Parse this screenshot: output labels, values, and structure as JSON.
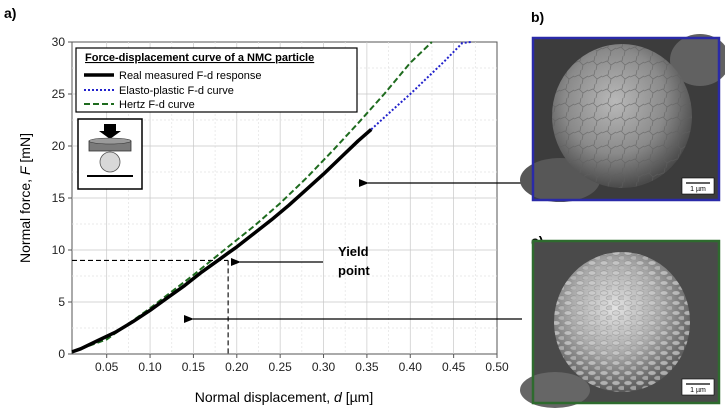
{
  "panels": {
    "a": "a)",
    "b": "b)",
    "c": "c)"
  },
  "chart_data": {
    "type": "line",
    "xlabel_main": "Normal displacement, ",
    "xlabel_var": "d",
    "xlabel_unit": " [µm]",
    "ylabel_main": "Normal force, ",
    "ylabel_var": "F",
    "ylabel_unit": " [mN]",
    "xlim": [
      0.01,
      0.5
    ],
    "ylim": [
      0,
      30
    ],
    "x_ticks": [
      "0.05",
      "0.10",
      "0.15",
      "0.20",
      "0.25",
      "0.30",
      "0.35",
      "0.40",
      "0.45",
      "0.50"
    ],
    "y_ticks": [
      "0",
      "5",
      "10",
      "15",
      "20",
      "25",
      "30"
    ],
    "grid": true,
    "legend_title": "Force-displacement curve of a NMC particle",
    "legend_position": "top-left",
    "series": [
      {
        "name": "Real measured F-d response",
        "color": "#000000",
        "style": "solid",
        "x": [
          0.01,
          0.02,
          0.04,
          0.06,
          0.08,
          0.1,
          0.12,
          0.14,
          0.16,
          0.18,
          0.19,
          0.2,
          0.22,
          0.24,
          0.26,
          0.28,
          0.3,
          0.32,
          0.34,
          0.355
        ],
        "y": [
          0.2,
          0.5,
          1.3,
          2.1,
          3.1,
          4.2,
          5.4,
          6.6,
          7.9,
          9.1,
          9.7,
          10.3,
          11.6,
          12.9,
          14.3,
          15.8,
          17.3,
          18.9,
          20.5,
          21.6
        ]
      },
      {
        "name": "Elasto-plastic F-d curve",
        "color": "#2222cc",
        "style": "dotted",
        "x": [
          0.355,
          0.38,
          0.4,
          0.42,
          0.44,
          0.46,
          0.47
        ],
        "y": [
          21.6,
          23.5,
          25.0,
          26.6,
          28.2,
          29.9,
          30.0
        ]
      },
      {
        "name": "Hertz F-d curve",
        "color": "#1e6b1e",
        "style": "dashed",
        "x": [
          0.01,
          0.05,
          0.1,
          0.15,
          0.19,
          0.22,
          0.25,
          0.28,
          0.31,
          0.34,
          0.37,
          0.4,
          0.425
        ],
        "y": [
          0.2,
          1.4,
          4.4,
          7.6,
          10.3,
          12.3,
          14.5,
          16.9,
          19.5,
          22.2,
          25.0,
          28.0,
          30.0
        ]
      }
    ],
    "yield_point": {
      "x": 0.19,
      "y": 9.0,
      "label_line1": "Yield",
      "label_line2": "point"
    }
  },
  "images": {
    "b": {
      "scale_bar": "1 µm",
      "border_color": "#2a2aa8"
    },
    "c": {
      "scale_bar": "1 µm",
      "border_color": "#2e6b2e"
    }
  }
}
